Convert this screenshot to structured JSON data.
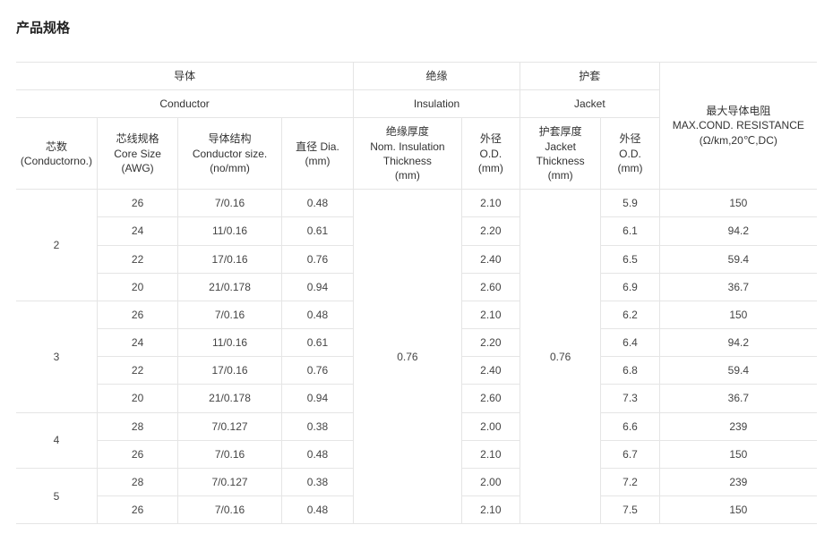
{
  "title": "产品规格",
  "table": {
    "header": {
      "group_zh": {
        "conductor": "导体",
        "insulation": "绝缘",
        "jacket": "护套"
      },
      "group_en": {
        "conductor": "Conductor",
        "insulation": "Insulation",
        "jacket": "Jacket"
      },
      "cols": {
        "core_no": "芯数\n(Conductorno.)",
        "core_size": "芯线规格\nCore Size\n(AWG)",
        "cond_size": "导体结构\nConductor size.\n(no/mm)",
        "dia": "直径 Dia.\n(mm)",
        "ins_thick": "绝缘厚度\nNom. Insulation\nThickness\n(mm)",
        "od1": "外径\nO.D.\n(mm)",
        "jacket_thick": "护套厚度\nJacket\nThickness\n(mm)",
        "od2": "外径\nO.D.\n(mm)",
        "resistance": "最大导体电阻\nMAX.COND. RESISTANCE\n(Ω/km,20℃,DC)"
      }
    },
    "shared": {
      "ins_thick": "0.76",
      "jacket_thick": "0.76"
    },
    "groups": [
      {
        "core_no": "2",
        "rows": [
          {
            "awg": "26",
            "cond": "7/0.16",
            "dia": "0.48",
            "od1": "2.10",
            "od2": "5.9",
            "res": "150"
          },
          {
            "awg": "24",
            "cond": "11/0.16",
            "dia": "0.61",
            "od1": "2.20",
            "od2": "6.1",
            "res": "94.2"
          },
          {
            "awg": "22",
            "cond": "17/0.16",
            "dia": "0.76",
            "od1": "2.40",
            "od2": "6.5",
            "res": "59.4"
          },
          {
            "awg": "20",
            "cond": "21/0.178",
            "dia": "0.94",
            "od1": "2.60",
            "od2": "6.9",
            "res": "36.7"
          }
        ]
      },
      {
        "core_no": "3",
        "rows": [
          {
            "awg": "26",
            "cond": "7/0.16",
            "dia": "0.48",
            "od1": "2.10",
            "od2": "6.2",
            "res": "150"
          },
          {
            "awg": "24",
            "cond": "11/0.16",
            "dia": "0.61",
            "od1": "2.20",
            "od2": "6.4",
            "res": "94.2"
          },
          {
            "awg": "22",
            "cond": "17/0.16",
            "dia": "0.76",
            "od1": "2.40",
            "od2": "6.8",
            "res": "59.4"
          },
          {
            "awg": "20",
            "cond": "21/0.178",
            "dia": "0.94",
            "od1": "2.60",
            "od2": "7.3",
            "res": "36.7"
          }
        ]
      },
      {
        "core_no": "4",
        "rows": [
          {
            "awg": "28",
            "cond": "7/0.127",
            "dia": "0.38",
            "od1": "2.00",
            "od2": "6.6",
            "res": "239"
          },
          {
            "awg": "26",
            "cond": "7/0.16",
            "dia": "0.48",
            "od1": "2.10",
            "od2": "6.7",
            "res": "150"
          }
        ]
      },
      {
        "core_no": "5",
        "rows": [
          {
            "awg": "28",
            "cond": "7/0.127",
            "dia": "0.38",
            "od1": "2.00",
            "od2": "7.2",
            "res": "239"
          },
          {
            "awg": "26",
            "cond": "7/0.16",
            "dia": "0.48",
            "od1": "2.10",
            "od2": "7.5",
            "res": "150"
          }
        ]
      }
    ]
  },
  "style": {
    "background_color": "#ffffff",
    "border_color": "#e5e5e5",
    "text_color": "#333333",
    "body_fontsize": 12,
    "title_fontsize": 15
  }
}
